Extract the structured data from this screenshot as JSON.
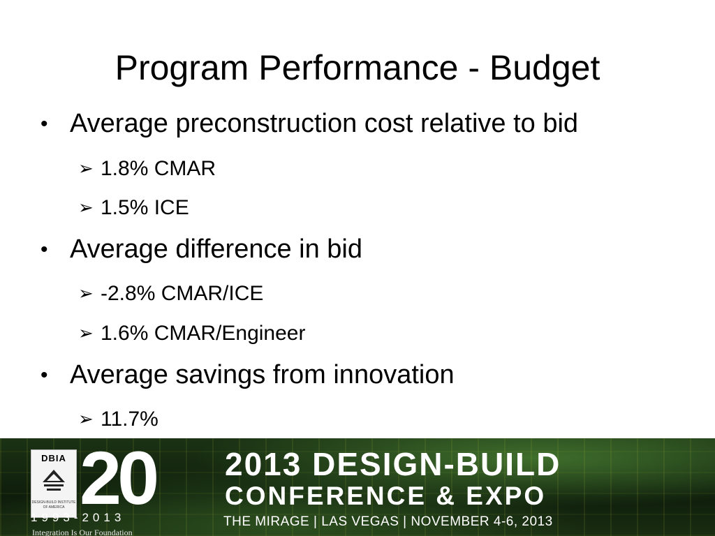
{
  "slide": {
    "title": "Program Performance - Budget",
    "bullets": [
      {
        "text": "Average preconstruction cost relative to bid",
        "subs": [
          "1.8% CMAR",
          "1.5% ICE"
        ]
      },
      {
        "text": "Average difference in bid",
        "subs": [
          "-2.8% CMAR/ICE",
          "1.6% CMAR/Engineer"
        ]
      },
      {
        "text": "Average savings from innovation",
        "subs": [
          "11.7%"
        ]
      }
    ]
  },
  "symbols": {
    "bullet": "•",
    "arrow": "➢"
  },
  "banner": {
    "logo_text": "DBIA",
    "logo_subtext": "DESIGN-BUILD INSTITUTE OF AMERICA",
    "anniversary": "20",
    "years": "1993-2013",
    "tagline": "Integration Is Our Foundation",
    "headline_line1": "2013 DESIGN-BUILD",
    "headline_line2": "CONFERENCE & EXPO",
    "headline_line3": "THE MIRAGE | LAS VEGAS | NOVEMBER 4-6, 2013",
    "colors": {
      "background": "#14260f",
      "text": "#ffffff"
    }
  }
}
